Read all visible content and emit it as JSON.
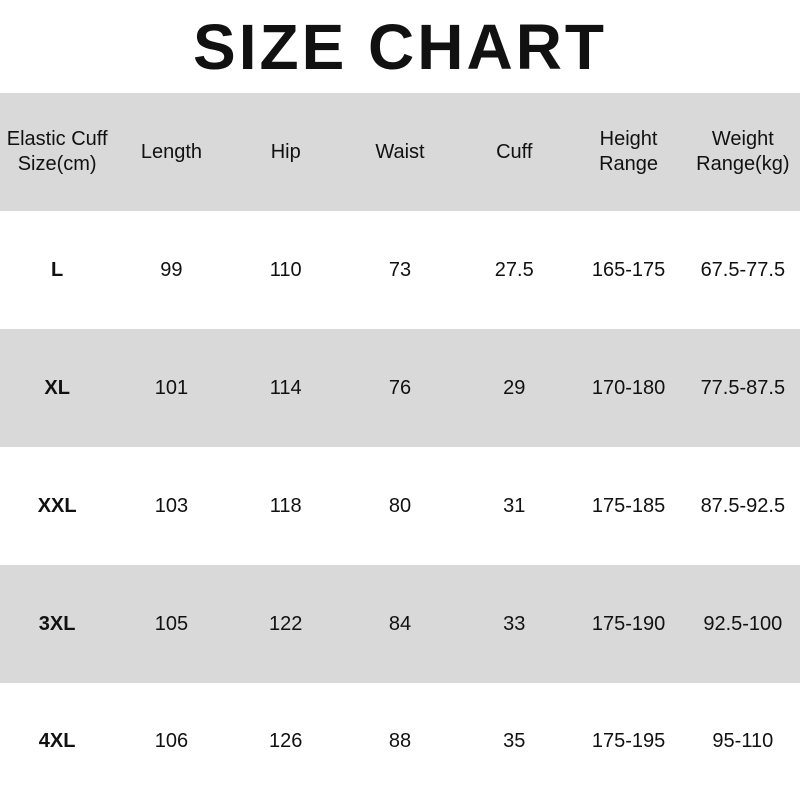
{
  "header": {
    "title": "SIZE CHART"
  },
  "table": {
    "columns": [
      "Elastic Cuff\nSize(cm)",
      "Length",
      "Hip",
      "Waist",
      "Cuff",
      "Height\nRange",
      "Weight\nRange(kg)"
    ],
    "rows": [
      [
        "L",
        99,
        110,
        73,
        27.5,
        "165-175",
        "67.5-77.5"
      ],
      [
        "XL",
        101,
        114,
        76,
        29,
        "170-180",
        "77.5-87.5"
      ],
      [
        "XXL",
        103,
        118,
        80,
        31,
        "175-185",
        "87.5-92.5"
      ],
      [
        "3XL",
        105,
        122,
        84,
        33,
        "175-190",
        "92.5-100"
      ],
      [
        "4XL",
        106,
        126,
        88,
        35,
        "175-195",
        "95-110"
      ]
    ]
  }
}
